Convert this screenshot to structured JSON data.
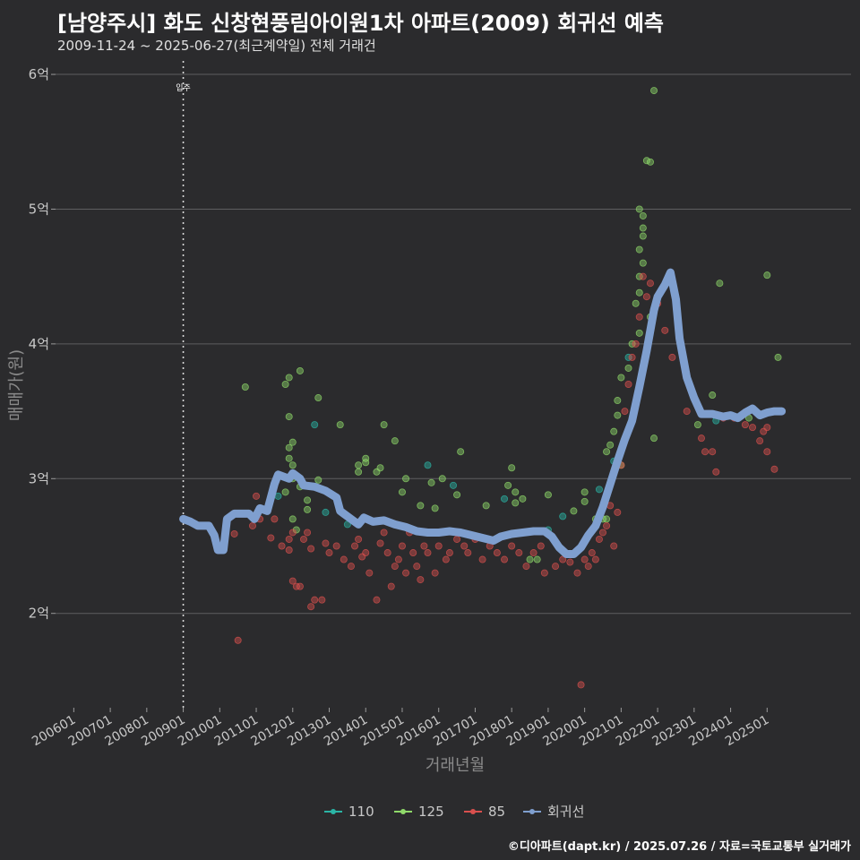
{
  "header": {
    "title": "[남양주시] 화도 신창현풍림아이원1차 아파트(2009) 회귀선 예측",
    "subtitle": "2009-11-24 ~ 2025-06-27(최근계약일) 전체 거래건"
  },
  "footer": {
    "caption": "©디아파트(dapt.kr) / 2025.07.26 / 자료=국토교통부 실거래가"
  },
  "chart_data": {
    "type": "scatter",
    "xlabel": "거래년월",
    "ylabel": "매매가(원)",
    "ylim": [
      1.3,
      6.1
    ],
    "xlim": [
      2005.5,
      2027.3
    ],
    "y_ticks": [
      {
        "value": 2,
        "label": "2억"
      },
      {
        "value": 3,
        "label": "3억"
      },
      {
        "value": 4,
        "label": "4억"
      },
      {
        "value": 5,
        "label": "5억"
      },
      {
        "value": 6,
        "label": "6억"
      }
    ],
    "x_ticks": [
      {
        "value": 2006,
        "label": "200601"
      },
      {
        "value": 2007,
        "label": "200701"
      },
      {
        "value": 2008,
        "label": "200801"
      },
      {
        "value": 2009,
        "label": "200901"
      },
      {
        "value": 2010,
        "label": "201001"
      },
      {
        "value": 2011,
        "label": "201101"
      },
      {
        "value": 2012,
        "label": "201201"
      },
      {
        "value": 2013,
        "label": "201301"
      },
      {
        "value": 2014,
        "label": "201401"
      },
      {
        "value": 2015,
        "label": "201501"
      },
      {
        "value": 2016,
        "label": "201601"
      },
      {
        "value": 2017,
        "label": "201701"
      },
      {
        "value": 2018,
        "label": "201801"
      },
      {
        "value": 2019,
        "label": "201901"
      },
      {
        "value": 2020,
        "label": "202001"
      },
      {
        "value": 2021,
        "label": "202101"
      },
      {
        "value": 2022,
        "label": "202201"
      },
      {
        "value": 2023,
        "label": "202301"
      },
      {
        "value": 2024,
        "label": "202401"
      },
      {
        "value": 2025,
        "label": "202501"
      }
    ],
    "annotation": {
      "x": 2009.0,
      "label": "입주"
    },
    "legend": {
      "position": "bottom"
    },
    "colors": {
      "110": "#2bb5a6",
      "125": "#8fd96a",
      "85": "#d9504e",
      "regression": "#7f9fcf"
    },
    "series": [
      {
        "name": "110",
        "points": [
          [
            2011.6,
            2.87
          ],
          [
            2012.9,
            2.75
          ],
          [
            2012.6,
            3.4
          ],
          [
            2015.7,
            3.1
          ],
          [
            2016.4,
            2.95
          ],
          [
            2017.8,
            2.85
          ],
          [
            2019.0,
            2.62
          ],
          [
            2019.4,
            2.72
          ],
          [
            2020.4,
            2.92
          ],
          [
            2020.8,
            3.13
          ],
          [
            2021.2,
            3.9
          ],
          [
            2023.6,
            3.43
          ],
          [
            2013.5,
            2.66
          ]
        ]
      },
      {
        "name": "125",
        "points": [
          [
            2010.7,
            3.68
          ],
          [
            2011.8,
            3.7
          ],
          [
            2011.9,
            3.75
          ],
          [
            2012.2,
            3.8
          ],
          [
            2011.9,
            3.46
          ],
          [
            2011.9,
            3.23
          ],
          [
            2012.0,
            3.27
          ],
          [
            2011.9,
            3.15
          ],
          [
            2012.0,
            3.1
          ],
          [
            2012.0,
            3.0
          ],
          [
            2012.2,
            2.94
          ],
          [
            2011.8,
            2.9
          ],
          [
            2012.4,
            2.84
          ],
          [
            2012.4,
            2.77
          ],
          [
            2012.7,
            2.99
          ],
          [
            2012.7,
            3.6
          ],
          [
            2012.0,
            2.7
          ],
          [
            2012.1,
            2.62
          ],
          [
            2013.3,
            3.4
          ],
          [
            2013.8,
            3.05
          ],
          [
            2013.8,
            3.1
          ],
          [
            2014.0,
            3.12
          ],
          [
            2014.0,
            3.15
          ],
          [
            2014.3,
            3.05
          ],
          [
            2014.4,
            3.08
          ],
          [
            2014.5,
            3.4
          ],
          [
            2014.8,
            3.28
          ],
          [
            2015.0,
            2.9
          ],
          [
            2015.1,
            3.0
          ],
          [
            2015.5,
            2.8
          ],
          [
            2015.8,
            2.97
          ],
          [
            2015.9,
            2.78
          ],
          [
            2016.1,
            3.0
          ],
          [
            2016.5,
            2.88
          ],
          [
            2016.6,
            3.2
          ],
          [
            2017.3,
            2.8
          ],
          [
            2017.9,
            2.95
          ],
          [
            2018.0,
            3.08
          ],
          [
            2018.1,
            2.9
          ],
          [
            2018.1,
            2.82
          ],
          [
            2018.3,
            2.85
          ],
          [
            2018.5,
            2.4
          ],
          [
            2018.7,
            2.4
          ],
          [
            2019.0,
            2.88
          ],
          [
            2019.7,
            2.76
          ],
          [
            2020.0,
            2.83
          ],
          [
            2020.0,
            2.9
          ],
          [
            2020.3,
            2.7
          ],
          [
            2020.6,
            2.7
          ],
          [
            2020.6,
            3.2
          ],
          [
            2020.7,
            3.25
          ],
          [
            2020.8,
            3.35
          ],
          [
            2020.9,
            3.47
          ],
          [
            2020.9,
            3.58
          ],
          [
            2021.0,
            3.1
          ],
          [
            2021.0,
            3.75
          ],
          [
            2021.2,
            3.82
          ],
          [
            2021.3,
            4.0
          ],
          [
            2021.4,
            4.3
          ],
          [
            2021.5,
            4.38
          ],
          [
            2021.5,
            4.5
          ],
          [
            2021.6,
            4.6
          ],
          [
            2021.5,
            4.7
          ],
          [
            2021.6,
            4.8
          ],
          [
            2021.6,
            4.86
          ],
          [
            2021.6,
            4.95
          ],
          [
            2021.5,
            5.0
          ],
          [
            2021.7,
            5.36
          ],
          [
            2021.8,
            5.35
          ],
          [
            2021.9,
            5.88
          ],
          [
            2021.9,
            3.3
          ],
          [
            2021.5,
            4.08
          ],
          [
            2021.8,
            4.2
          ],
          [
            2023.1,
            3.4
          ],
          [
            2023.5,
            3.62
          ],
          [
            2023.7,
            4.45
          ],
          [
            2024.5,
            3.45
          ],
          [
            2025.0,
            4.51
          ],
          [
            2025.3,
            3.9
          ],
          [
            2020.5,
            2.7
          ]
        ]
      },
      {
        "name": "85",
        "points": [
          [
            2010.5,
            1.8
          ],
          [
            2010.4,
            2.59
          ],
          [
            2010.9,
            2.65
          ],
          [
            2011.1,
            2.7
          ],
          [
            2011.0,
            2.87
          ],
          [
            2011.4,
            2.56
          ],
          [
            2011.5,
            2.7
          ],
          [
            2011.7,
            2.5
          ],
          [
            2011.9,
            2.47
          ],
          [
            2011.9,
            2.55
          ],
          [
            2012.0,
            2.6
          ],
          [
            2012.0,
            2.24
          ],
          [
            2012.1,
            2.2
          ],
          [
            2012.2,
            2.2
          ],
          [
            2012.3,
            2.55
          ],
          [
            2012.4,
            2.6
          ],
          [
            2012.5,
            2.05
          ],
          [
            2012.5,
            2.48
          ],
          [
            2012.6,
            2.1
          ],
          [
            2012.8,
            2.1
          ],
          [
            2012.9,
            2.52
          ],
          [
            2013.0,
            2.45
          ],
          [
            2013.2,
            2.5
          ],
          [
            2013.4,
            2.4
          ],
          [
            2013.6,
            2.35
          ],
          [
            2013.7,
            2.5
          ],
          [
            2013.8,
            2.55
          ],
          [
            2013.9,
            2.42
          ],
          [
            2014.0,
            2.45
          ],
          [
            2014.1,
            2.3
          ],
          [
            2014.3,
            2.1
          ],
          [
            2014.4,
            2.52
          ],
          [
            2014.5,
            2.6
          ],
          [
            2014.6,
            2.45
          ],
          [
            2014.7,
            2.2
          ],
          [
            2014.8,
            2.35
          ],
          [
            2014.9,
            2.4
          ],
          [
            2015.0,
            2.5
          ],
          [
            2015.1,
            2.3
          ],
          [
            2015.2,
            2.6
          ],
          [
            2015.3,
            2.45
          ],
          [
            2015.4,
            2.35
          ],
          [
            2015.5,
            2.25
          ],
          [
            2015.6,
            2.5
          ],
          [
            2015.7,
            2.45
          ],
          [
            2015.8,
            2.6
          ],
          [
            2015.9,
            2.3
          ],
          [
            2016.0,
            2.5
          ],
          [
            2016.2,
            2.4
          ],
          [
            2016.3,
            2.45
          ],
          [
            2016.5,
            2.55
          ],
          [
            2016.7,
            2.5
          ],
          [
            2016.8,
            2.45
          ],
          [
            2017.0,
            2.55
          ],
          [
            2017.2,
            2.4
          ],
          [
            2017.4,
            2.5
          ],
          [
            2017.6,
            2.45
          ],
          [
            2017.8,
            2.4
          ],
          [
            2018.0,
            2.5
          ],
          [
            2018.2,
            2.45
          ],
          [
            2018.4,
            2.35
          ],
          [
            2018.6,
            2.45
          ],
          [
            2018.8,
            2.5
          ],
          [
            2018.9,
            2.3
          ],
          [
            2019.2,
            2.35
          ],
          [
            2019.4,
            2.4
          ],
          [
            2019.6,
            2.38
          ],
          [
            2019.8,
            2.3
          ],
          [
            2019.9,
            1.47
          ],
          [
            2020.0,
            2.4
          ],
          [
            2020.1,
            2.35
          ],
          [
            2020.2,
            2.45
          ],
          [
            2020.3,
            2.4
          ],
          [
            2020.4,
            2.55
          ],
          [
            2020.5,
            2.6
          ],
          [
            2020.6,
            2.65
          ],
          [
            2020.7,
            2.8
          ],
          [
            2020.8,
            2.5
          ],
          [
            2020.9,
            2.75
          ],
          [
            2021.0,
            3.1
          ],
          [
            2021.1,
            3.5
          ],
          [
            2021.2,
            3.7
          ],
          [
            2021.3,
            3.9
          ],
          [
            2021.4,
            4.0
          ],
          [
            2021.5,
            4.2
          ],
          [
            2021.6,
            4.5
          ],
          [
            2021.7,
            4.35
          ],
          [
            2021.8,
            4.45
          ],
          [
            2022.0,
            4.3
          ],
          [
            2022.2,
            4.1
          ],
          [
            2022.4,
            3.9
          ],
          [
            2022.8,
            3.5
          ],
          [
            2023.2,
            3.3
          ],
          [
            2023.3,
            3.2
          ],
          [
            2023.5,
            3.2
          ],
          [
            2023.6,
            3.05
          ],
          [
            2023.8,
            3.45
          ],
          [
            2024.1,
            3.45
          ],
          [
            2024.4,
            3.4
          ],
          [
            2024.6,
            3.38
          ],
          [
            2024.8,
            3.28
          ],
          [
            2024.9,
            3.35
          ],
          [
            2025.0,
            3.2
          ],
          [
            2025.2,
            3.07
          ],
          [
            2025.0,
            3.38
          ]
        ]
      },
      {
        "name": "회귀선",
        "points": [
          [
            2009.0,
            2.7
          ],
          [
            2009.2,
            2.68
          ],
          [
            2009.4,
            2.65
          ],
          [
            2009.7,
            2.65
          ],
          [
            2009.85,
            2.58
          ],
          [
            2009.95,
            2.47
          ],
          [
            2010.1,
            2.47
          ],
          [
            2010.2,
            2.7
          ],
          [
            2010.4,
            2.74
          ],
          [
            2010.8,
            2.74
          ],
          [
            2010.95,
            2.7
          ],
          [
            2011.1,
            2.78
          ],
          [
            2011.3,
            2.76
          ],
          [
            2011.5,
            2.96
          ],
          [
            2011.6,
            3.03
          ],
          [
            2011.9,
            3.0
          ],
          [
            2012.0,
            3.04
          ],
          [
            2012.2,
            3.0
          ],
          [
            2012.3,
            2.95
          ],
          [
            2012.6,
            2.94
          ],
          [
            2012.9,
            2.91
          ],
          [
            2013.2,
            2.86
          ],
          [
            2013.3,
            2.76
          ],
          [
            2013.6,
            2.7
          ],
          [
            2013.8,
            2.66
          ],
          [
            2013.95,
            2.71
          ],
          [
            2014.2,
            2.68
          ],
          [
            2014.5,
            2.69
          ],
          [
            2014.8,
            2.66
          ],
          [
            2015.1,
            2.64
          ],
          [
            2015.4,
            2.61
          ],
          [
            2015.7,
            2.6
          ],
          [
            2016.0,
            2.6
          ],
          [
            2016.3,
            2.61
          ],
          [
            2016.6,
            2.6
          ],
          [
            2016.9,
            2.58
          ],
          [
            2017.2,
            2.56
          ],
          [
            2017.5,
            2.54
          ],
          [
            2017.7,
            2.57
          ],
          [
            2018.0,
            2.59
          ],
          [
            2018.3,
            2.6
          ],
          [
            2018.6,
            2.61
          ],
          [
            2018.9,
            2.61
          ],
          [
            2019.1,
            2.57
          ],
          [
            2019.3,
            2.49
          ],
          [
            2019.5,
            2.44
          ],
          [
            2019.7,
            2.44
          ],
          [
            2019.9,
            2.49
          ],
          [
            2020.1,
            2.58
          ],
          [
            2020.3,
            2.65
          ],
          [
            2020.5,
            2.79
          ],
          [
            2020.7,
            2.96
          ],
          [
            2020.9,
            3.13
          ],
          [
            2021.1,
            3.29
          ],
          [
            2021.3,
            3.43
          ],
          [
            2021.5,
            3.68
          ],
          [
            2021.7,
            3.95
          ],
          [
            2021.9,
            4.25
          ],
          [
            2022.0,
            4.35
          ],
          [
            2022.2,
            4.44
          ],
          [
            2022.35,
            4.53
          ],
          [
            2022.5,
            4.33
          ],
          [
            2022.6,
            4.04
          ],
          [
            2022.8,
            3.75
          ],
          [
            2023.0,
            3.6
          ],
          [
            2023.2,
            3.48
          ],
          [
            2023.5,
            3.48
          ],
          [
            2023.8,
            3.46
          ],
          [
            2024.0,
            3.47
          ],
          [
            2024.2,
            3.45
          ],
          [
            2024.4,
            3.49
          ],
          [
            2024.6,
            3.52
          ],
          [
            2024.8,
            3.47
          ],
          [
            2025.0,
            3.49
          ],
          [
            2025.2,
            3.5
          ],
          [
            2025.4,
            3.5
          ]
        ]
      }
    ]
  }
}
